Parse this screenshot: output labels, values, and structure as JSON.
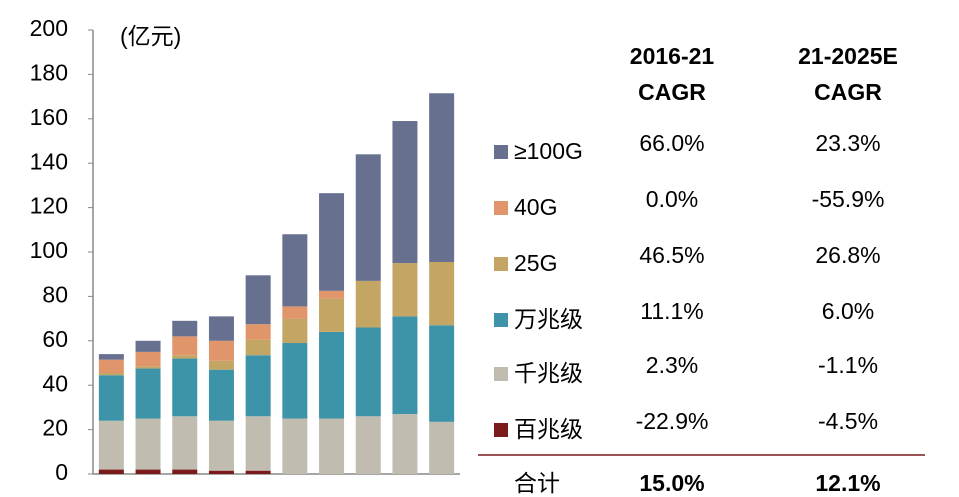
{
  "chart_data": {
    "type": "stacked-bar",
    "y_label": "(亿元)",
    "categories": [
      null,
      null,
      null,
      null,
      null,
      null,
      null,
      null,
      null,
      null
    ],
    "series": [
      {
        "name": "≥100G",
        "color": "#67708f",
        "values": [
          2.5,
          5,
          7,
          11,
          22,
          32.5,
          44,
          57,
          64,
          76
        ]
      },
      {
        "name": "40G",
        "color": "#e0956a",
        "values": [
          6,
          6.5,
          8.5,
          9,
          7,
          5.5,
          3.5,
          0,
          0,
          0
        ]
      },
      {
        "name": "25G",
        "color": "#c4a664",
        "values": [
          1,
          1,
          1.5,
          4,
          7,
          11,
          15,
          21,
          24,
          28.5
        ]
      },
      {
        "name": "万兆级",
        "color": "#3d93a8",
        "values": [
          20.5,
          22.5,
          26,
          23,
          27.5,
          34,
          39,
          40,
          44,
          43.5
        ]
      },
      {
        "name": "千兆级",
        "color": "#c0bdb0",
        "values": [
          22,
          23,
          24,
          22.5,
          24.5,
          25,
          25,
          26,
          27,
          23.5
        ]
      },
      {
        "name": "百兆级",
        "color": "#7b1a1a",
        "values": [
          2,
          2,
          2,
          1.5,
          1.5,
          0,
          0,
          0,
          0,
          0
        ]
      }
    ],
    "ylim": [
      0,
      200
    ],
    "yticks": [
      0,
      20,
      40,
      60,
      80,
      100,
      120,
      140,
      160,
      180,
      200
    ]
  },
  "table": {
    "columns": [
      [
        "2016-21",
        "CAGR"
      ],
      [
        "21-2025E",
        "CAGR"
      ]
    ],
    "rows": [
      [
        "66.0%",
        "23.3%"
      ],
      [
        "0.0%",
        "-55.9%"
      ],
      [
        "46.5%",
        "26.8%"
      ],
      [
        "11.1%",
        "6.0%"
      ],
      [
        "2.3%",
        "-1.1%"
      ],
      [
        "-22.9%",
        "-4.5%"
      ]
    ],
    "total": {
      "label": "合计",
      "values": [
        "15.0%",
        "12.1%"
      ]
    }
  }
}
